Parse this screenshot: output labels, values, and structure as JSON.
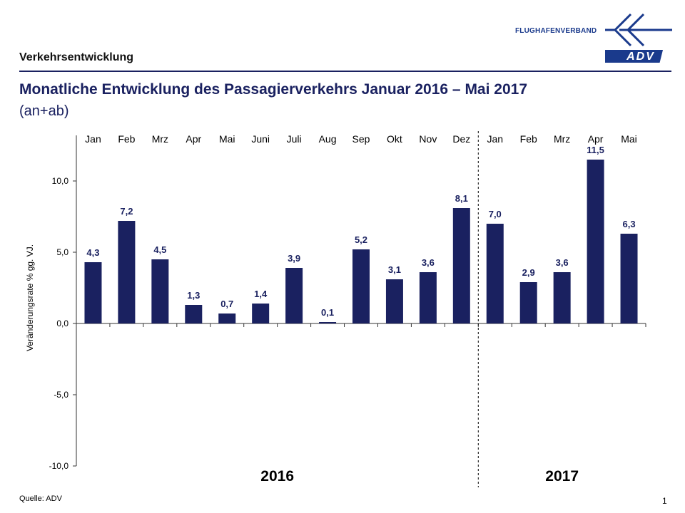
{
  "header": {
    "section_title": "Verkehrsentwicklung",
    "title": "Monatliche Entwicklung des Passagierverkehrs  Januar 2016 – Mai 2017",
    "subtitle": "(an+ab)",
    "brand_text": "FLUGHAFENVERBAND",
    "logo_text": "ADV",
    "logo_icon": "adv-airplane-logo-icon"
  },
  "footer": {
    "source": "Quelle: ADV",
    "page_number": "1"
  },
  "colors": {
    "bar": "#1a2160",
    "accent": "#1a2160",
    "axis": "#333333"
  },
  "chart_data": {
    "type": "bar",
    "title": "Monatliche Entwicklung des Passagierverkehrs Januar 2016 – Mai 2017",
    "ylabel": "Veränderungsrate  % gg. VJ.",
    "xlabel": "",
    "ylim": [
      -10,
      12.5
    ],
    "yticks": [
      10,
      5,
      0,
      -5,
      -10
    ],
    "ytick_labels": [
      "10,0",
      "5,0",
      "0,0",
      "-5,0",
      "-10,0"
    ],
    "categories": [
      "Jan",
      "Feb",
      "Mrz",
      "Apr",
      "Mai",
      "Juni",
      "Juli",
      "Aug",
      "Sep",
      "Okt",
      "Nov",
      "Dez",
      "Jan",
      "Feb",
      "Mrz",
      "Apr",
      "Mai"
    ],
    "values": [
      4.3,
      7.2,
      4.5,
      1.3,
      0.7,
      1.4,
      3.9,
      0.1,
      5.2,
      3.1,
      3.6,
      8.1,
      7.0,
      2.9,
      3.6,
      11.5,
      6.3
    ],
    "value_labels": [
      "4,3",
      "7,2",
      "4,5",
      "1,3",
      "0,7",
      "1,4",
      "3,9",
      "0,1",
      "5,2",
      "3,1",
      "3,6",
      "8,1",
      "7,0",
      "2,9",
      "3,6",
      "11,5",
      "6,3"
    ],
    "groups": [
      {
        "label": "2016",
        "start": 0,
        "end": 11
      },
      {
        "label": "2017",
        "start": 12,
        "end": 16
      }
    ],
    "grid": false
  }
}
